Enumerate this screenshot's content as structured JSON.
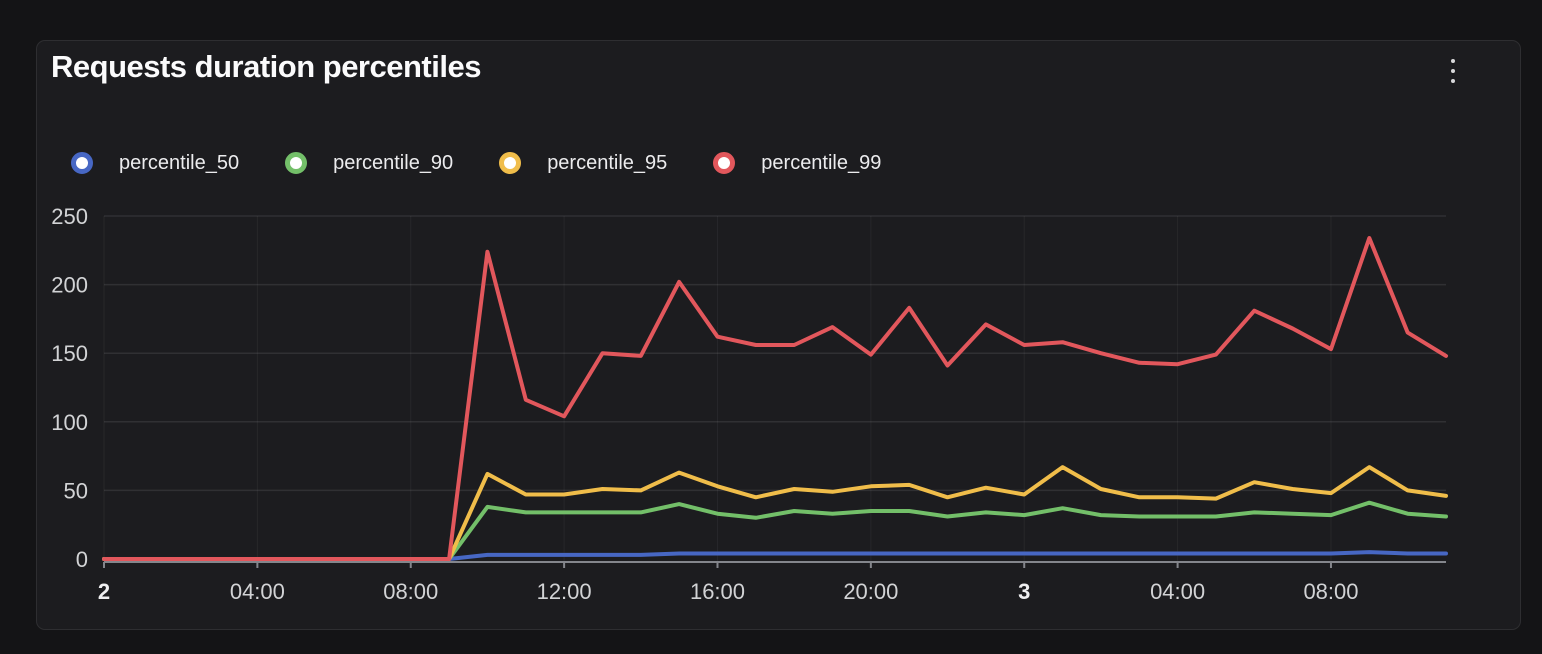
{
  "panel": {
    "title": "Requests duration percentiles",
    "menu_icon": "kebab-menu"
  },
  "chart_data": {
    "type": "line",
    "title": "Requests duration percentiles",
    "xlabel": "",
    "ylabel": "",
    "ylim": [
      0,
      250
    ],
    "yticks": [
      0,
      50,
      100,
      150,
      200,
      250
    ],
    "grid": true,
    "legend_position": "top",
    "x_unit": "hours, one point per hour starting at day-2 00:00",
    "x_hours": [
      0,
      1,
      2,
      3,
      4,
      5,
      6,
      7,
      8,
      9,
      10,
      11,
      12,
      13,
      14,
      15,
      16,
      17,
      18,
      19,
      20,
      21,
      22,
      23,
      24,
      25,
      26,
      27,
      28,
      29,
      30,
      31,
      32,
      33,
      34,
      35
    ],
    "x_ticks": [
      {
        "hour": 0,
        "label": "2",
        "bold": true
      },
      {
        "hour": 4,
        "label": "04:00",
        "bold": false
      },
      {
        "hour": 8,
        "label": "08:00",
        "bold": false
      },
      {
        "hour": 12,
        "label": "12:00",
        "bold": false
      },
      {
        "hour": 16,
        "label": "16:00",
        "bold": false
      },
      {
        "hour": 20,
        "label": "20:00",
        "bold": false
      },
      {
        "hour": 24,
        "label": "3",
        "bold": true
      },
      {
        "hour": 28,
        "label": "04:00",
        "bold": false
      },
      {
        "hour": 32,
        "label": "08:00",
        "bold": false
      }
    ],
    "series": [
      {
        "name": "percentile_50",
        "color": "#4767c4",
        "values": [
          0,
          0,
          0,
          0,
          0,
          0,
          0,
          0,
          0,
          0,
          3,
          3,
          3,
          3,
          3,
          4,
          4,
          4,
          4,
          4,
          4,
          4,
          4,
          4,
          4,
          4,
          4,
          4,
          4,
          4,
          4,
          4,
          4,
          5,
          4,
          4
        ]
      },
      {
        "name": "percentile_90",
        "color": "#73bf69",
        "values": [
          0,
          0,
          0,
          0,
          0,
          0,
          0,
          0,
          0,
          0,
          38,
          34,
          34,
          34,
          34,
          40,
          33,
          30,
          35,
          33,
          35,
          35,
          31,
          34,
          32,
          37,
          32,
          31,
          31,
          31,
          34,
          33,
          32,
          41,
          33,
          31
        ]
      },
      {
        "name": "percentile_95",
        "color": "#f0bd4a",
        "values": [
          0,
          0,
          0,
          0,
          0,
          0,
          0,
          0,
          0,
          0,
          62,
          47,
          47,
          51,
          50,
          63,
          53,
          45,
          51,
          49,
          53,
          54,
          45,
          52,
          47,
          67,
          51,
          45,
          45,
          44,
          56,
          51,
          48,
          67,
          50,
          46
        ]
      },
      {
        "name": "percentile_99",
        "color": "#e2575c",
        "values": [
          0,
          0,
          0,
          0,
          0,
          0,
          0,
          0,
          0,
          0,
          224,
          116,
          104,
          150,
          148,
          202,
          162,
          156,
          156,
          169,
          149,
          183,
          141,
          171,
          156,
          158,
          150,
          143,
          142,
          149,
          181,
          168,
          153,
          234,
          165,
          148
        ]
      }
    ]
  }
}
